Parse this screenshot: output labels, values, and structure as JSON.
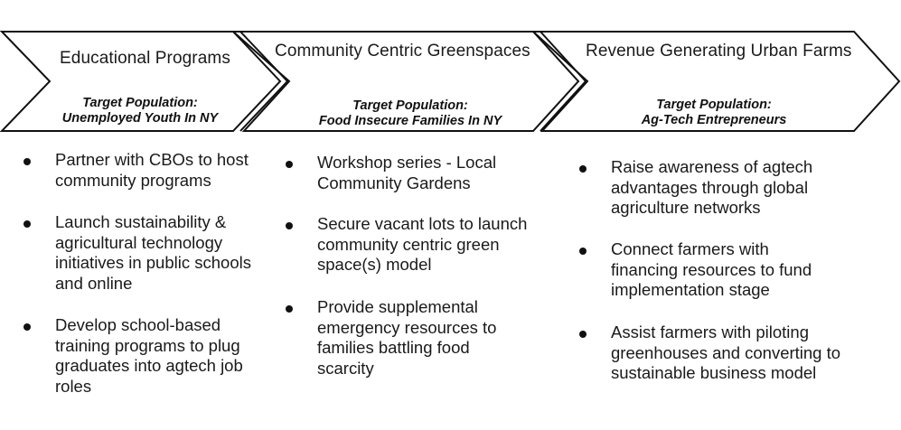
{
  "colors": {
    "stroke": "#111111",
    "text": "#1a1a1a",
    "background": "#ffffff"
  },
  "stages": [
    {
      "title": "Educational Programs",
      "target_label": "Target Population:",
      "target_value": "Unemployed Youth In NY",
      "bullets": [
        "Partner with CBOs to host community programs",
        "Launch sustainability & agricultural technology initiatives in public schools and online",
        "Develop school-based training programs to plug graduates into agtech job roles"
      ]
    },
    {
      "title": "Community Centric Greenspaces",
      "target_label": "Target Population:",
      "target_value": "Food Insecure Families In NY",
      "bullets": [
        "Workshop series - Local Community Gardens",
        "Secure vacant lots to launch community centric green space(s) model",
        "Provide supplemental emergency resources to families battling food scarcity"
      ]
    },
    {
      "title": "Revenue Generating Urban Farms",
      "target_label": "Target Population:",
      "target_value": "Ag-Tech Entrepreneurs",
      "bullets": [
        "Raise awareness of agtech advantages through global agriculture networks",
        "Connect farmers with financing resources to fund implementation stage",
        "Assist farmers with piloting greenhouses and converting to sustainable business model"
      ]
    }
  ]
}
